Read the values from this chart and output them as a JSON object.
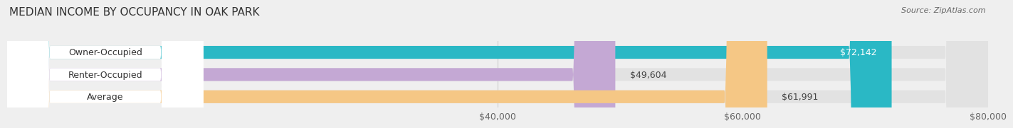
{
  "title": "MEDIAN INCOME BY OCCUPANCY IN OAK PARK",
  "source": "Source: ZipAtlas.com",
  "categories": [
    "Owner-Occupied",
    "Renter-Occupied",
    "Average"
  ],
  "values": [
    72142,
    49604,
    61991
  ],
  "labels": [
    "$72,142",
    "$49,604",
    "$61,991"
  ],
  "colors": [
    "#2ab8c5",
    "#c4a8d4",
    "#f5c785"
  ],
  "xlim": [
    0,
    80000
  ],
  "xticks": [
    40000,
    60000,
    80000
  ],
  "xticklabels": [
    "$40,000",
    "$60,000",
    "$80,000"
  ],
  "bar_height": 0.58,
  "background_color": "#efefef",
  "bar_bg_color": "#e2e2e2",
  "title_fontsize": 11,
  "label_fontsize": 9,
  "tick_fontsize": 9
}
